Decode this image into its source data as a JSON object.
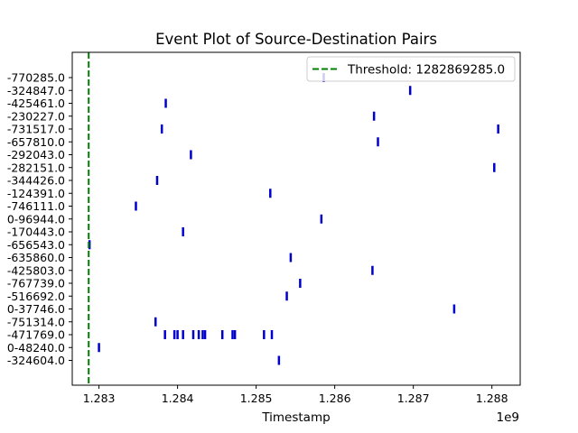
{
  "chart_data": {
    "type": "event",
    "title": "Event Plot of Source-Destination Pairs",
    "xlabel": "Timestamp",
    "ylabel": "",
    "x_offset_label": "1e9",
    "x_scale": 1000000000,
    "xlim": [
      1282660000,
      1288360000
    ],
    "x_ticks": [
      1283000000,
      1284000000,
      1285000000,
      1286000000,
      1287000000,
      1288000000
    ],
    "x_tick_labels": [
      "1.283",
      "1.284",
      "1.285",
      "1.286",
      "1.287",
      "1.288"
    ],
    "grid": false,
    "legend": {
      "placement": "top-right",
      "entries": [
        {
          "label": "Threshold: 1282869285.0",
          "color": "#008000",
          "style": "dashed"
        }
      ]
    },
    "threshold": 1282869285.0,
    "event_color": "#0000cc",
    "categories": [
      "-770285.0",
      "-324847.0",
      "-425461.0",
      "-230227.0",
      "-731517.0",
      "-657810.0",
      "-292043.0",
      "-282151.0",
      "-344426.0",
      "-124391.0",
      "-746111.0",
      "0-96944.0",
      "-170443.0",
      "-656543.0",
      "-635860.0",
      "-425803.0",
      "-767739.0",
      "-516692.0",
      "0-37746.0",
      "-751314.0",
      "-471769.0",
      "0-48240.0",
      "-324604.0"
    ],
    "events": [
      [
        1285860000
      ],
      [
        1286960000
      ],
      [
        1283850000
      ],
      [
        1286500000
      ],
      [
        1283800000,
        1288080000
      ],
      [
        1286550000
      ],
      [
        1284170000
      ],
      [
        1288030000
      ],
      [
        1283740000
      ],
      [
        1285180000
      ],
      [
        1283470000
      ],
      [
        1285830000
      ],
      [
        1284070000
      ],
      [
        1282880000
      ],
      [
        1285440000
      ],
      [
        1286480000
      ],
      [
        1285560000
      ],
      [
        1285390000
      ],
      [
        1287520000
      ],
      [
        1283720000
      ],
      [
        1283840000,
        1283960000,
        1284000000,
        1284070000,
        1284200000,
        1284270000,
        1284320000,
        1284350000,
        1284570000,
        1284700000,
        1284730000,
        1285100000,
        1285200000
      ],
      [
        1283000000
      ],
      [
        1285290000
      ]
    ]
  }
}
